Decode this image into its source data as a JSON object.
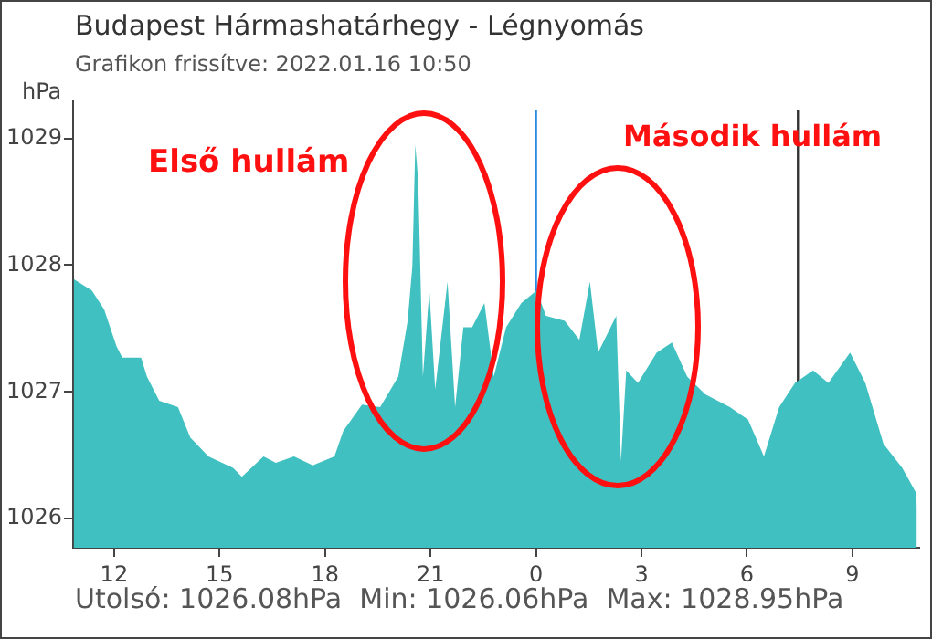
{
  "chart_data": {
    "type": "area",
    "title": "Budapest Hármashatárhegy - Légnyomás",
    "subtitle": "Grafikon frissítve: 2022.01.16 10:50",
    "ylabel": "hPa",
    "annotations": [
      "Első hullám",
      "Második hullám",
      "Utolsó: 1026.08hPa  Min: 1026.06hPa  Max: 1028.95hPa"
    ],
    "x": [
      "2022-01-15T10:51",
      "2022-01-15T11:22",
      "2022-01-15T11:43",
      "2022-01-15T12:04",
      "2022-01-15T12:14",
      "2022-01-15T12:46",
      "2022-01-15T12:56",
      "2022-01-15T13:17",
      "2022-01-15T13:49",
      "2022-01-15T14:10",
      "2022-01-15T14:41",
      "2022-01-15T15:23",
      "2022-01-15T15:38",
      "2022-01-15T16:15",
      "2022-01-15T16:36",
      "2022-01-15T17:07",
      "2022-01-15T17:39",
      "2022-01-15T18:16",
      "2022-01-15T18:31",
      "2022-01-15T19:03",
      "2022-01-15T19:34",
      "2022-01-15T20:05",
      "2022-01-15T20:21",
      "2022-01-15T20:29",
      "2022-01-15T20:34",
      "2022-01-15T20:39",
      "2022-01-15T20:47",
      "2022-01-15T20:58",
      "2022-01-15T21:08",
      "2022-01-15T21:29",
      "2022-01-15T21:42",
      "2022-01-15T21:56",
      "2022-01-15T22:11",
      "2022-01-15T22:32",
      "2022-01-15T22:48",
      "2022-01-15T23:09",
      "2022-01-15T23:35",
      "2022-01-16T00:01",
      "2022-01-16T00:17",
      "2022-01-16T00:49",
      "2022-01-16T01:14",
      "2022-01-16T01:32",
      "2022-01-16T01:46",
      "2022-01-16T02:02",
      "2022-01-16T02:17",
      "2022-01-16T02:25",
      "2022-01-16T02:34",
      "2022-01-16T02:54",
      "2022-01-16T03:26",
      "2022-01-16T03:52",
      "2022-01-16T04:18",
      "2022-01-16T04:49",
      "2022-01-16T05:31",
      "2022-01-16T06:02",
      "2022-01-16T06:29",
      "2022-01-16T06:55",
      "2022-01-16T07:22",
      "2022-01-16T07:53",
      "2022-01-16T08:19",
      "2022-01-16T08:56",
      "2022-01-16T09:22",
      "2022-01-16T09:53",
      "2022-01-16T10:25",
      "2022-01-16T10:49",
      "2022-01-16T10:50"
    ],
    "series": [
      {
        "color": "#40c0c0",
        "values": [
          1027.89,
          1027.8,
          1027.65,
          1027.36,
          1027.27,
          1027.27,
          1027.12,
          1026.93,
          1026.88,
          1026.64,
          1026.49,
          1026.4,
          1026.33,
          1026.49,
          1026.44,
          1026.49,
          1026.42,
          1026.49,
          1026.69,
          1026.9,
          1026.88,
          1027.12,
          1027.56,
          1027.99,
          1028.95,
          1028.66,
          1027.12,
          1027.8,
          1027.02,
          1027.87,
          1026.88,
          1027.51,
          1027.51,
          1027.7,
          1027.12,
          1027.51,
          1027.7,
          1027.8,
          1027.6,
          1027.56,
          1027.41,
          1027.87,
          1027.31,
          1027.46,
          1027.6,
          1026.45,
          1027.17,
          1027.07,
          1027.31,
          1027.39,
          1027.12,
          1026.98,
          1026.88,
          1026.78,
          1026.49,
          1026.88,
          1027.07,
          1027.17,
          1027.07,
          1027.31,
          1027.07,
          1026.59,
          1026.4,
          1026.2,
          1026.08
        ]
      }
    ],
    "xlim": [
      "2022-01-15T10:50",
      "2022-01-16T10:54"
    ],
    "ylim": [
      1025.77,
      1029.3
    ],
    "xticks": [
      {
        "value": "2022-01-15T12:00",
        "label": "12"
      },
      {
        "value": "2022-01-15T15:00",
        "label": "15"
      },
      {
        "value": "2022-01-15T18:00",
        "label": "18"
      },
      {
        "value": "2022-01-15T21:00",
        "label": "21"
      },
      {
        "value": "2022-01-16T00:00",
        "label": "0"
      },
      {
        "value": "2022-01-16T03:00",
        "label": "3"
      },
      {
        "value": "2022-01-16T06:00",
        "label": "6"
      },
      {
        "value": "2022-01-16T09:00",
        "label": "9"
      }
    ],
    "yticks": [
      1026,
      1027,
      1028,
      1029
    ],
    "ref_lines": [
      {
        "axis": "x",
        "value": "2022-01-16T00:00",
        "color": "#2a8ae0"
      },
      {
        "axis": "x",
        "value": "2022-01-16T07:27",
        "color": "#333333"
      }
    ],
    "legend": false
  }
}
